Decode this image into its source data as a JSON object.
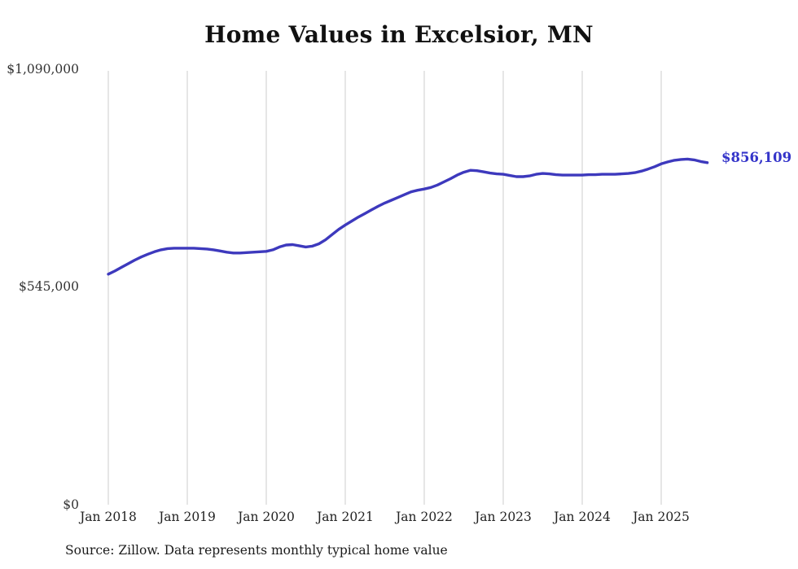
{
  "chart_data": {
    "type": "line",
    "title": "Home Values in Excelsior, MN",
    "series_name": "Typical home value",
    "source_note": "Source: Zillow. Data represents monthly typical home value",
    "end_label": "$856,109",
    "latest_value": 856109,
    "x_start": "Jan 2018",
    "frequency": "monthly",
    "x_tick_labels": [
      "Jan 2018",
      "Jan 2019",
      "Jan 2020",
      "Jan 2021",
      "Jan 2022",
      "Jan 2023",
      "Jan 2024",
      "Jan 2025"
    ],
    "y_ticks": [
      {
        "value": 0,
        "label": "$0"
      },
      {
        "value": 545000,
        "label": "$545,000"
      },
      {
        "value": 1090000,
        "label": "$1,090,000"
      }
    ],
    "ylim": [
      0,
      1090000
    ],
    "grid": "vertical-only",
    "legend": "none",
    "values": [
      577000,
      585000,
      594000,
      603000,
      612000,
      620000,
      627000,
      633000,
      638000,
      641000,
      642000,
      642000,
      642000,
      642000,
      641000,
      640000,
      638000,
      635000,
      632000,
      630000,
      630000,
      631000,
      632000,
      633000,
      634000,
      638000,
      645000,
      650000,
      651000,
      648000,
      645000,
      647000,
      653000,
      663000,
      676000,
      689000,
      700000,
      710000,
      720000,
      729000,
      738000,
      747000,
      755000,
      762000,
      769000,
      776000,
      783000,
      787000,
      790000,
      794000,
      800000,
      808000,
      816000,
      825000,
      832000,
      837000,
      836000,
      833000,
      830000,
      828000,
      827000,
      824000,
      821000,
      821000,
      823000,
      827000,
      829000,
      828000,
      826000,
      825000,
      825000,
      825000,
      825000,
      826000,
      826000,
      827000,
      827000,
      827000,
      828000,
      829000,
      831000,
      835000,
      840000,
      846000,
      853000,
      858000,
      862000,
      864000,
      865000,
      863000,
      859000,
      856109
    ],
    "colors": {
      "line": "#3d39bd",
      "label": "#3434c9",
      "gridline": "#cccccc",
      "text": "#333333"
    }
  }
}
